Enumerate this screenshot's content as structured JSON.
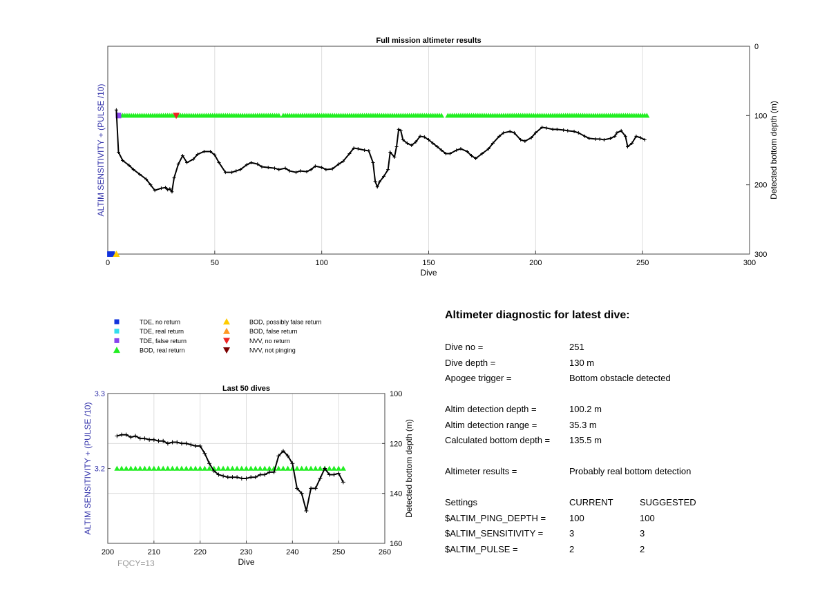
{
  "chart_data": [
    {
      "type": "scatter",
      "title": "Full mission altimeter results",
      "xlabel": "Dive",
      "ylabel_left": "ALTIM SENSITIVITY + (PULSE /10)",
      "ylabel_right": "Detected bottom depth (m)",
      "xlim": [
        0,
        300
      ],
      "ylim_right": [
        0,
        300
      ],
      "y_right_reversed": true,
      "xticks": [
        "0",
        "50",
        "100",
        "150",
        "200",
        "250",
        "300"
      ],
      "yticks_right": [
        "0",
        "100",
        "200",
        "300"
      ],
      "grid": "vertical",
      "series": [
        {
          "name": "BOD, real return",
          "marker": "triangle-up",
          "color": "#22ee22",
          "depth": 100,
          "x_ranges": [
            [
              5,
              66
            ],
            [
              67,
              80
            ],
            [
              82,
              156
            ],
            [
              159,
              252
            ]
          ]
        },
        {
          "name": "NVV, no return",
          "marker": "triangle-down",
          "color": "#ee2222",
          "points": [
            [
              32,
              100
            ]
          ]
        },
        {
          "name": "TDE, false return",
          "marker": "square",
          "color": "#8844ee",
          "points": [
            [
              5,
              100
            ]
          ]
        },
        {
          "name": "TDE, no return",
          "marker": "square",
          "color": "#1133dd",
          "points": [
            [
              1,
              300
            ],
            [
              2,
              300
            ]
          ]
        },
        {
          "name": "BOD, possibly false return",
          "marker": "triangle-up",
          "color": "#ffcc00",
          "points": [
            [
              4,
              300
            ]
          ]
        },
        {
          "name": "Detected bottom depth",
          "marker": "plus",
          "color": "#000000",
          "x": [
            4,
            5,
            7,
            10,
            12,
            15,
            18,
            20,
            22,
            25,
            27,
            28,
            29,
            30,
            31,
            33,
            35,
            37,
            40,
            42,
            45,
            48,
            50,
            52,
            55,
            58,
            60,
            62,
            65,
            67,
            70,
            72,
            75,
            78,
            80,
            83,
            85,
            88,
            90,
            93,
            95,
            97,
            100,
            102,
            105,
            108,
            110,
            113,
            115,
            117,
            120,
            122,
            124,
            125,
            126,
            127,
            129,
            131,
            132,
            134,
            135,
            136,
            137,
            138,
            140,
            142,
            144,
            146,
            148,
            150,
            152,
            154,
            156,
            158,
            160,
            163,
            165,
            168,
            170,
            172,
            175,
            178,
            180,
            183,
            185,
            188,
            190,
            193,
            195,
            198,
            200,
            203,
            205,
            208,
            210,
            213,
            215,
            218,
            220,
            223,
            225,
            228,
            230,
            232,
            235,
            237,
            238,
            240,
            242,
            243,
            245,
            247,
            249,
            251
          ],
          "y": [
            92,
            153,
            165,
            172,
            178,
            185,
            192,
            200,
            208,
            205,
            204,
            207,
            206,
            210,
            190,
            170,
            158,
            168,
            163,
            156,
            152,
            152,
            157,
            168,
            182,
            182,
            180,
            178,
            171,
            168,
            170,
            174,
            175,
            176,
            178,
            176,
            180,
            182,
            180,
            181,
            178,
            173,
            175,
            178,
            177,
            170,
            166,
            155,
            147,
            148,
            150,
            151,
            168,
            195,
            203,
            196,
            188,
            178,
            153,
            160,
            145,
            120,
            122,
            135,
            140,
            143,
            138,
            130,
            131,
            135,
            140,
            145,
            150,
            155,
            155,
            150,
            148,
            152,
            158,
            162,
            155,
            148,
            140,
            130,
            125,
            123,
            125,
            135,
            137,
            132,
            125,
            117,
            118,
            120,
            120,
            121,
            122,
            123,
            125,
            130,
            133,
            134,
            134,
            135,
            133,
            130,
            125,
            122,
            130,
            145,
            140,
            130,
            132,
            135
          ]
        }
      ]
    },
    {
      "type": "scatter",
      "title": "Last 50 dives",
      "xlabel": "Dive",
      "ylabel_left": "ALTIM SENSITIVITY + (PULSE /10)",
      "ylabel_right": "Detected bottom depth (m)",
      "xlim": [
        200,
        260
      ],
      "ylim_left": [
        3.1,
        3.3
      ],
      "ylim_right": [
        100,
        160
      ],
      "y_right_reversed": true,
      "xticks": [
        "200",
        "210",
        "220",
        "230",
        "240",
        "250",
        "260"
      ],
      "yticks_left": [
        "3.2",
        "3.3"
      ],
      "yticks_right": [
        "100",
        "120",
        "140",
        "160"
      ],
      "grid": "full",
      "series": [
        {
          "name": "BOD, real return",
          "marker": "triangle-up",
          "color": "#22ee22",
          "depth": 130,
          "x_range": [
            202,
            251
          ]
        },
        {
          "name": "Detected bottom depth",
          "marker": "plus",
          "color": "#000000",
          "x": [
            202,
            203,
            204,
            205,
            206,
            207,
            208,
            209,
            210,
            211,
            212,
            213,
            214,
            215,
            216,
            217,
            218,
            219,
            220,
            221,
            222,
            223,
            224,
            225,
            226,
            227,
            228,
            229,
            230,
            231,
            232,
            233,
            234,
            235,
            236,
            237,
            238,
            239,
            240,
            241,
            242,
            243,
            244,
            245,
            246,
            247,
            248,
            249,
            250,
            251
          ],
          "y": [
            117,
            116.5,
            116.5,
            117.5,
            117,
            118,
            118,
            118.5,
            118.5,
            119,
            119,
            120,
            119.5,
            119.5,
            120,
            120,
            120.5,
            121,
            121,
            124,
            128,
            131,
            132.5,
            133,
            133.5,
            133.5,
            133.5,
            134,
            134,
            133.5,
            133.5,
            132.5,
            132.5,
            131.5,
            131.5,
            125,
            123,
            125,
            128,
            138,
            140,
            147,
            138,
            138,
            134,
            130,
            132.5,
            132.5,
            132,
            135.5
          ]
        }
      ]
    }
  ],
  "legend": [
    {
      "label": "TDE, no return",
      "marker": "square",
      "color": "#1133dd"
    },
    {
      "label": "TDE, real return",
      "marker": "square",
      "color": "#33ddee"
    },
    {
      "label": "TDE, false return",
      "marker": "square",
      "color": "#8844ee"
    },
    {
      "label": "BOD, real return",
      "marker": "triangle-up",
      "color": "#22ee22"
    },
    {
      "label": "BOD, possibly false return",
      "marker": "triangle-up",
      "color": "#ffcc00"
    },
    {
      "label": "BOD, false return",
      "marker": "triangle-up",
      "color": "#ff9922"
    },
    {
      "label": "NVV, no return",
      "marker": "triangle-down",
      "color": "#ee2222"
    },
    {
      "label": "NVV, not pinging",
      "marker": "triangle-down",
      "color": "#7a0000"
    }
  ],
  "colors": {
    "left_axis_label": "#3333aa",
    "fqcy": "#999999",
    "grid": "#dddddd"
  },
  "fqcy_label": "FQCY=13",
  "diagnostic": {
    "title": "Altimeter diagnostic for latest dive:",
    "rows": [
      {
        "key": "Dive no =",
        "value": "251",
        "suggested": ""
      },
      {
        "key": "Dive depth =",
        "value": "130 m",
        "suggested": ""
      },
      {
        "key": "Apogee trigger =",
        "value": "Bottom obstacle detected",
        "suggested": ""
      },
      {
        "key": "Altim detection depth =",
        "value": "100.2 m",
        "suggested": ""
      },
      {
        "key": "Altim detection range =",
        "value": "35.3 m",
        "suggested": ""
      },
      {
        "key": "Calculated bottom depth =",
        "value": "135.5 m",
        "suggested": ""
      },
      {
        "key": "Altimeter results =",
        "value": "Probably real bottom detection",
        "suggested": ""
      },
      {
        "key": "Settings",
        "value": "CURRENT",
        "suggested": "SUGGESTED"
      },
      {
        "key": "$ALTIM_PING_DEPTH =",
        "value": "100",
        "suggested": "100"
      },
      {
        "key": "$ALTIM_SENSITIVITY =",
        "value": "3",
        "suggested": "3"
      },
      {
        "key": "$ALTIM_PULSE =",
        "value": "2",
        "suggested": "2"
      }
    ]
  }
}
